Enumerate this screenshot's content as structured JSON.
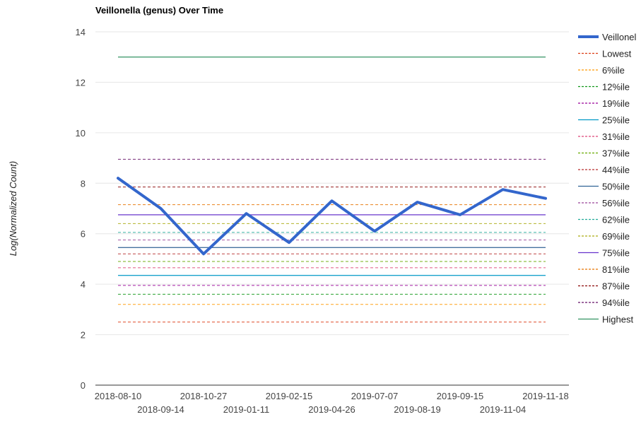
{
  "chart_data": {
    "type": "line",
    "title": "Veillonella (genus) Over Time",
    "xlabel": "",
    "ylabel": "Log(Normalized Count)",
    "ylim": [
      0,
      14
    ],
    "yticks": [
      0,
      2,
      4,
      6,
      8,
      10,
      12,
      14
    ],
    "x": [
      "2018-08-10",
      "2018-09-14",
      "2018-10-27",
      "2019-01-11",
      "2019-02-15",
      "2019-04-26",
      "2019-07-07",
      "2019-08-19",
      "2019-09-15",
      "2019-11-04",
      "2019-11-18"
    ],
    "grid": true,
    "legend_position": "right",
    "series": [
      {
        "name": "Veillonel",
        "color": "#3366cc",
        "style": "solid-thick",
        "values": [
          8.2,
          7.0,
          5.2,
          6.8,
          5.65,
          7.3,
          6.1,
          7.25,
          6.75,
          7.75,
          7.4
        ]
      },
      {
        "name": "Lowest",
        "color": "#dc3912",
        "style": "dashed",
        "constant": 2.5
      },
      {
        "name": "6%ile",
        "color": "#ff9900",
        "style": "dashed",
        "constant": 3.2
      },
      {
        "name": "12%ile",
        "color": "#109618",
        "style": "dashed",
        "constant": 3.6
      },
      {
        "name": "19%ile",
        "color": "#990099",
        "style": "dashed",
        "constant": 3.95
      },
      {
        "name": "25%ile",
        "color": "#0099c6",
        "style": "solid",
        "constant": 4.35
      },
      {
        "name": "31%ile",
        "color": "#dd4477",
        "style": "dashed",
        "constant": 4.65
      },
      {
        "name": "37%ile",
        "color": "#66aa00",
        "style": "dashed",
        "constant": 4.9
      },
      {
        "name": "44%ile",
        "color": "#b82e2e",
        "style": "dashed",
        "constant": 5.2
      },
      {
        "name": "50%ile",
        "color": "#316395",
        "style": "solid",
        "constant": 5.45
      },
      {
        "name": "56%ile",
        "color": "#994499",
        "style": "dashed",
        "constant": 5.75
      },
      {
        "name": "62%ile",
        "color": "#22aa99",
        "style": "dashed",
        "constant": 6.05
      },
      {
        "name": "69%ile",
        "color": "#aaaa11",
        "style": "dashed",
        "constant": 6.4
      },
      {
        "name": "75%ile",
        "color": "#6633cc",
        "style": "solid",
        "constant": 6.75
      },
      {
        "name": "81%ile",
        "color": "#e67300",
        "style": "dashed",
        "constant": 7.15
      },
      {
        "name": "87%ile",
        "color": "#8b0707",
        "style": "dashed",
        "constant": 7.85
      },
      {
        "name": "94%ile",
        "color": "#651067",
        "style": "dashed",
        "constant": 8.95
      },
      {
        "name": "Highest",
        "color": "#329262",
        "style": "solid",
        "constant": 13.0
      }
    ]
  }
}
